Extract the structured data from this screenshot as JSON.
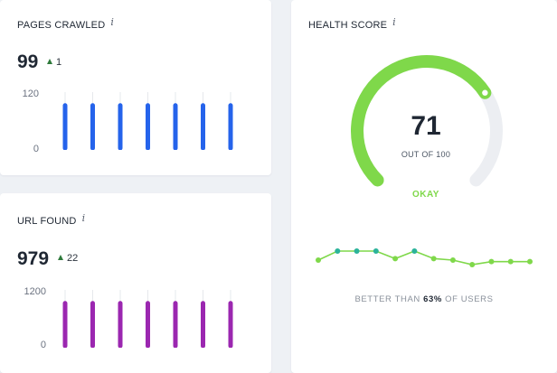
{
  "pages_crawled": {
    "title": "PAGES CRAWLED",
    "info": "i",
    "value": "99",
    "delta": "1",
    "axis_top": "120",
    "axis_bottom": "0",
    "bar_color": "#2563eb",
    "bars": [
      0.8,
      0.8,
      0.8,
      0.8,
      0.8,
      0.8,
      0.8
    ],
    "bar_max": 120
  },
  "url_found": {
    "title": "URL FOUND",
    "info": "i",
    "value": "979",
    "delta": "22",
    "axis_top": "1200",
    "axis_bottom": "0",
    "bar_color": "#9b27b0",
    "bars": [
      0.8,
      0.8,
      0.8,
      0.8,
      0.8,
      0.8,
      0.8
    ],
    "bar_max": 1200
  },
  "health": {
    "title": "HEALTH SCORE",
    "info": "i",
    "score": "71",
    "score_value": 71,
    "out_of": "OUT OF 100",
    "status": "OKAY",
    "gauge_color": "#7fd84a",
    "track_color": "#eceef2",
    "trend": [
      3,
      9,
      9,
      9,
      4,
      9,
      4,
      3,
      0,
      2,
      2,
      2
    ],
    "trend_highlight": [
      false,
      true,
      true,
      true,
      false,
      true,
      false,
      false,
      false,
      false,
      false,
      false
    ],
    "highlight_color": "#2bb39a",
    "better_prefix": "BETTER THAN",
    "better_value": "63%",
    "better_suffix": "OF USERS"
  }
}
